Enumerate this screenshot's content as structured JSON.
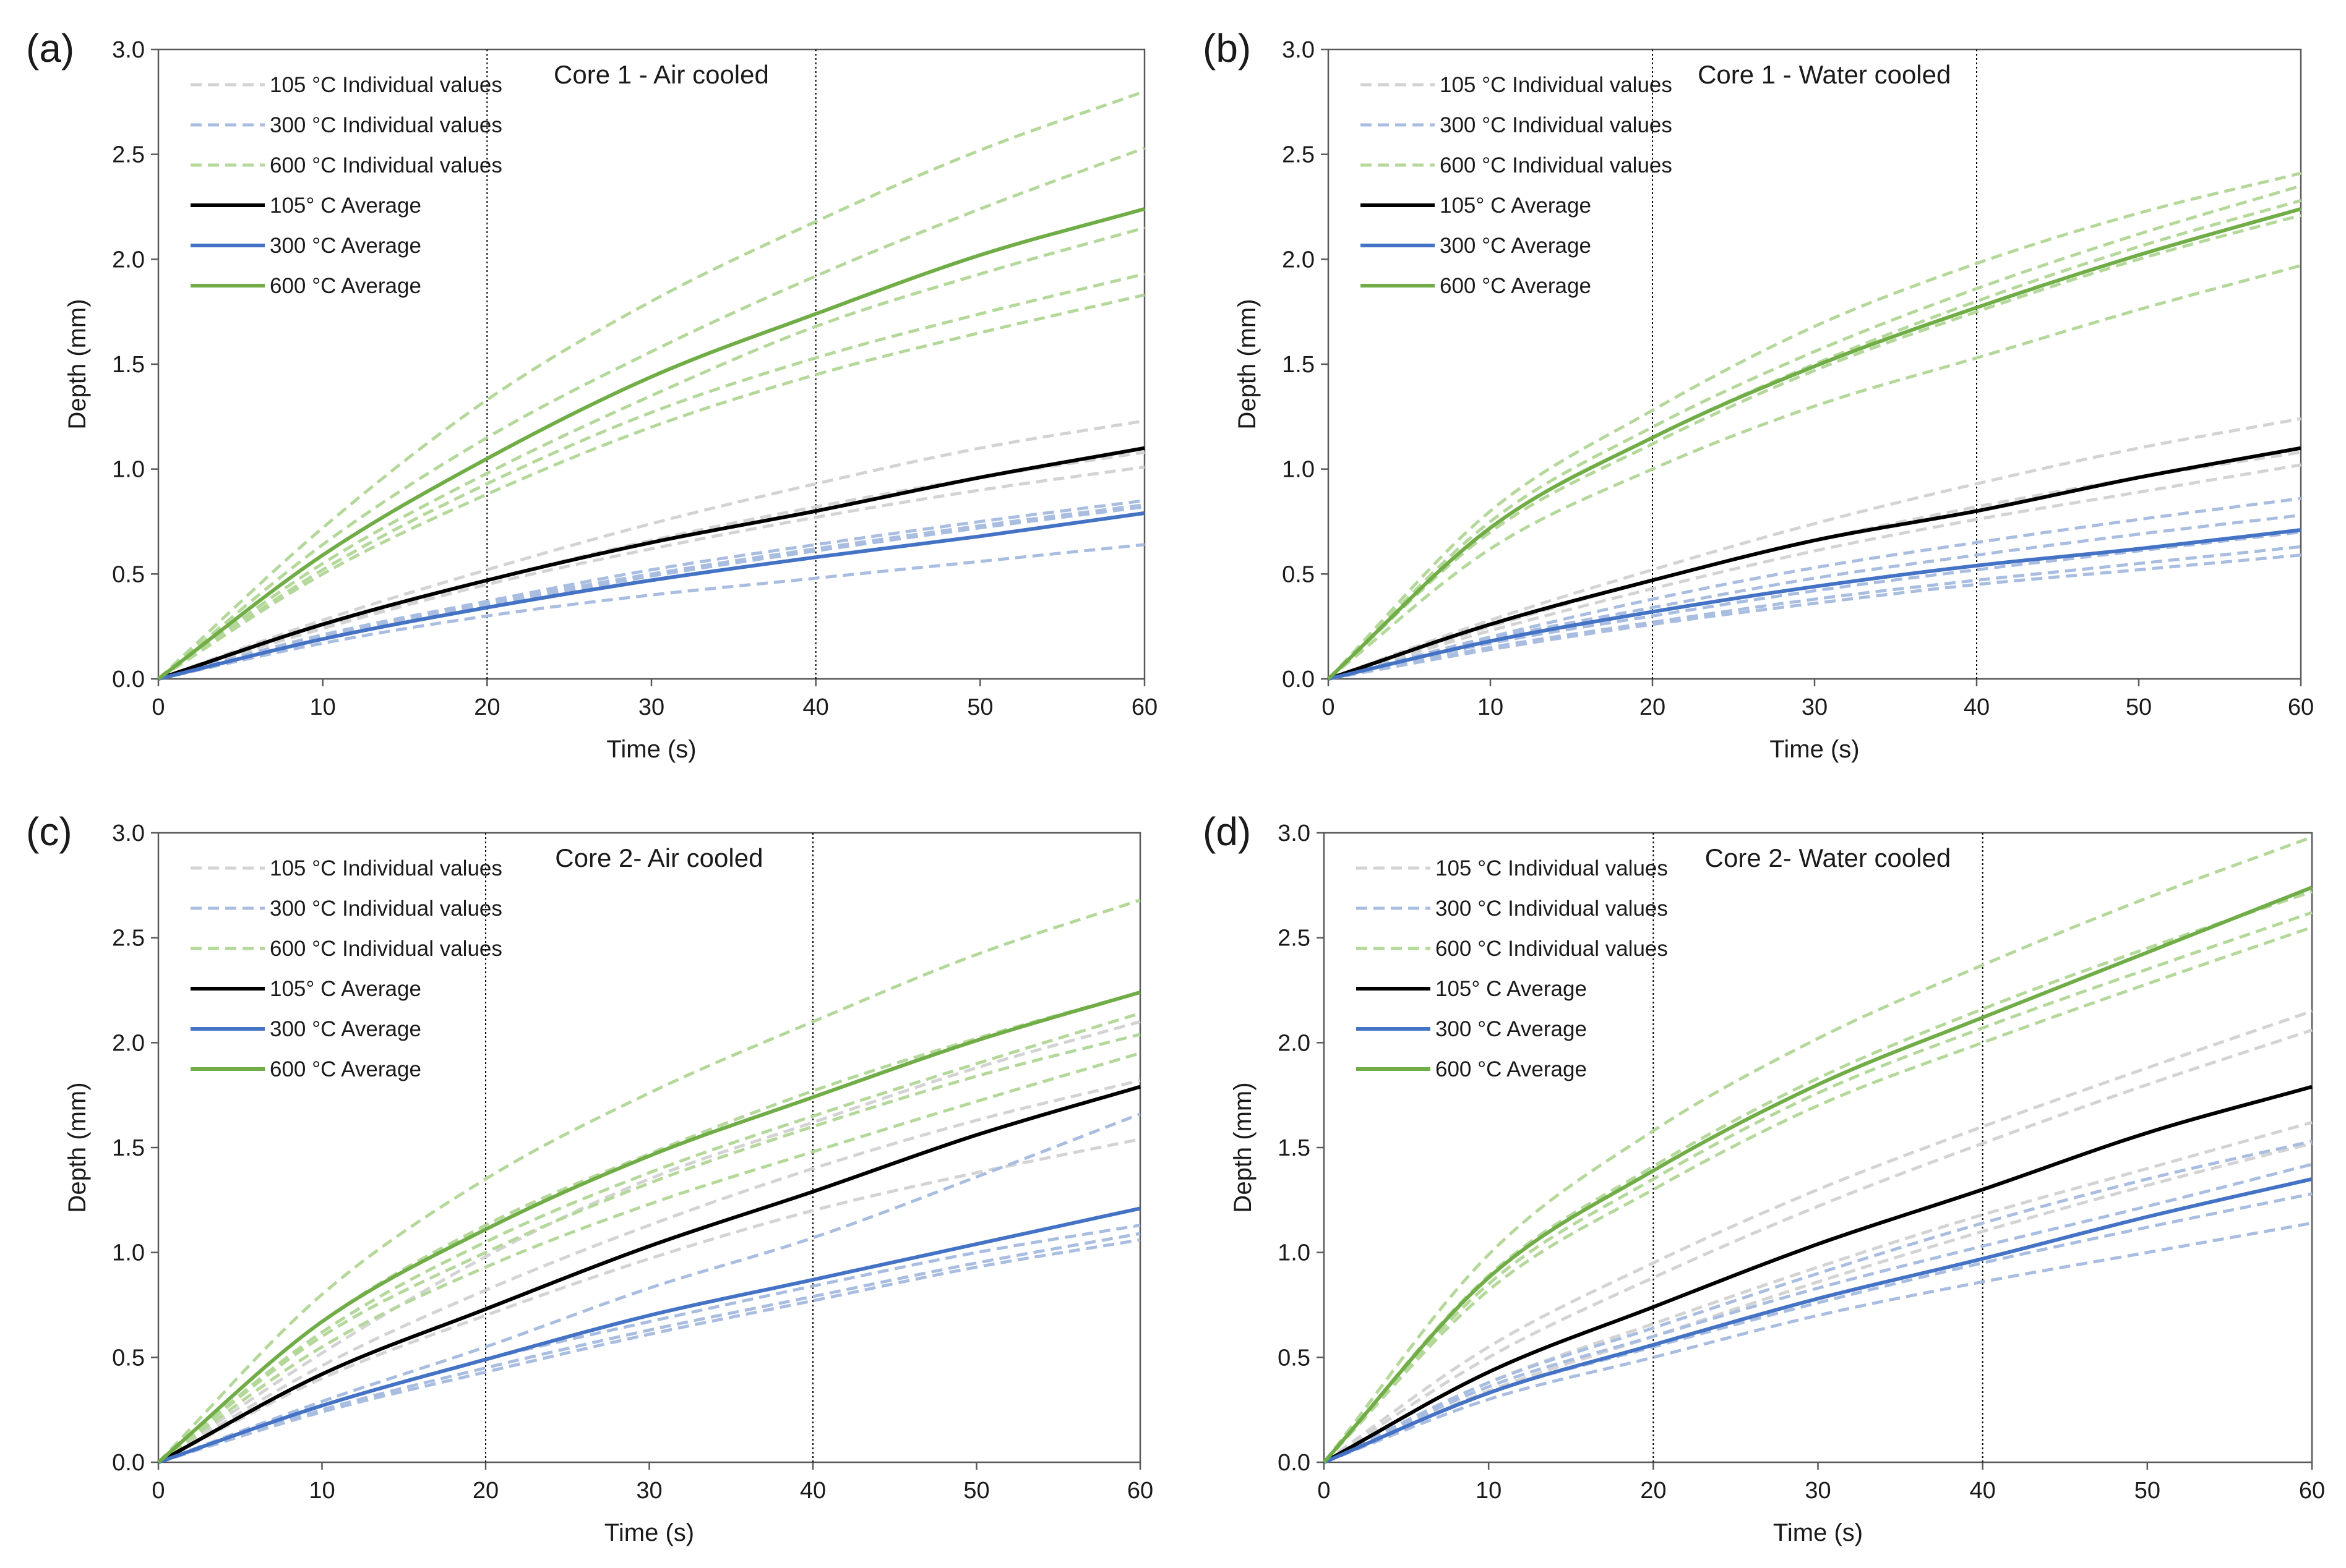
{
  "figure": {
    "panels": [
      {
        "letter": "(a)",
        "title": "Core 1 - Air cooled"
      },
      {
        "letter": "(b)",
        "title": "Core 1 - Water cooled"
      },
      {
        "letter": "(c)",
        "title": "Core 2- Air cooled"
      },
      {
        "letter": "(d)",
        "title": "Core 2- Water cooled"
      }
    ]
  },
  "colors": {
    "c105_individual": "#d3d3d3",
    "c300_individual": "#a9bde0",
    "c600_individual": "#b4d89a",
    "c105_average": "#000000",
    "c300_average": "#4472c4",
    "c600_average": "#70ad47",
    "reference_line": "#000000"
  },
  "chart_data": [
    {
      "type": "line",
      "title": "Core 1 - Air cooled",
      "xlabel": "Time (s)",
      "ylabel": "Depth (mm)",
      "xlim": [
        0,
        60
      ],
      "ylim": [
        0,
        3.0
      ],
      "xticks": [
        0,
        10,
        20,
        30,
        40,
        50,
        60
      ],
      "yticks": [
        "0.0",
        "0.5",
        "1.0",
        "1.5",
        "2.0",
        "2.5",
        "3.0"
      ],
      "vlines": [
        20,
        40
      ],
      "legend": [
        "105 °C Individual values",
        "300 °C Individual values",
        "600 °C Individual values",
        "105° C Average",
        "300 °C Average",
        "600 °C Average"
      ],
      "x": [
        0,
        10,
        20,
        30,
        40,
        50,
        60
      ],
      "individual": {
        "105": [
          [
            0,
            0.28,
            0.52,
            0.74,
            0.93,
            1.1,
            1.23
          ],
          [
            0,
            0.25,
            0.47,
            0.66,
            0.82,
            0.96,
            1.08
          ],
          [
            0,
            0.24,
            0.45,
            0.62,
            0.77,
            0.9,
            1.01
          ]
        ],
        "300": [
          [
            0,
            0.21,
            0.37,
            0.52,
            0.64,
            0.75,
            0.85
          ],
          [
            0,
            0.2,
            0.36,
            0.5,
            0.62,
            0.73,
            0.83
          ],
          [
            0,
            0.2,
            0.35,
            0.49,
            0.61,
            0.72,
            0.82
          ],
          [
            0,
            0.17,
            0.3,
            0.4,
            0.48,
            0.56,
            0.64
          ]
        ],
        "600": [
          [
            0,
            0.72,
            1.33,
            1.8,
            2.18,
            2.52,
            2.8
          ],
          [
            0,
            0.64,
            1.15,
            1.56,
            1.92,
            2.24,
            2.53
          ],
          [
            0,
            0.55,
            0.98,
            1.35,
            1.68,
            1.93,
            2.15
          ],
          [
            0,
            0.52,
            0.93,
            1.27,
            1.53,
            1.74,
            1.93
          ],
          [
            0,
            0.5,
            0.88,
            1.2,
            1.45,
            1.65,
            1.83
          ]
        ]
      },
      "average": {
        "105": [
          0,
          0.26,
          0.47,
          0.65,
          0.8,
          0.96,
          1.1
        ],
        "300": [
          0,
          0.19,
          0.34,
          0.47,
          0.58,
          0.68,
          0.79
        ],
        "600": [
          0,
          0.59,
          1.05,
          1.44,
          1.74,
          2.02,
          2.24
        ]
      }
    },
    {
      "type": "line",
      "title": "Core 1 - Water cooled",
      "xlabel": "Time (s)",
      "ylabel": "Depth (mm)",
      "xlim": [
        0,
        60
      ],
      "ylim": [
        0,
        3.0
      ],
      "xticks": [
        0,
        10,
        20,
        30,
        40,
        50,
        60
      ],
      "yticks": [
        "0.0",
        "0.5",
        "1.0",
        "1.5",
        "2.0",
        "2.5",
        "3.0"
      ],
      "vlines": [
        20,
        40
      ],
      "legend": [
        "105 °C Individual values",
        "300 °C Individual values",
        "600 °C Individual values",
        "105° C Average",
        "300 °C Average",
        "600 °C Average"
      ],
      "x": [
        0,
        10,
        20,
        30,
        40,
        50,
        60
      ],
      "individual": {
        "105": [
          [
            0,
            0.28,
            0.52,
            0.74,
            0.93,
            1.1,
            1.24
          ],
          [
            0,
            0.25,
            0.47,
            0.66,
            0.82,
            0.96,
            1.08
          ],
          [
            0,
            0.23,
            0.43,
            0.61,
            0.76,
            0.89,
            1.02
          ]
        ],
        "300": [
          [
            0,
            0.2,
            0.38,
            0.53,
            0.65,
            0.76,
            0.86
          ],
          [
            0,
            0.19,
            0.34,
            0.48,
            0.59,
            0.69,
            0.78
          ],
          [
            0,
            0.17,
            0.3,
            0.42,
            0.52,
            0.61,
            0.7
          ],
          [
            0,
            0.15,
            0.27,
            0.38,
            0.47,
            0.55,
            0.63
          ],
          [
            0,
            0.14,
            0.26,
            0.36,
            0.45,
            0.52,
            0.59
          ]
        ],
        "600": [
          [
            0,
            0.8,
            1.28,
            1.68,
            1.98,
            2.22,
            2.41
          ],
          [
            0,
            0.75,
            1.2,
            1.56,
            1.86,
            2.12,
            2.35
          ],
          [
            0,
            0.72,
            1.15,
            1.5,
            1.8,
            2.06,
            2.28
          ],
          [
            0,
            0.7,
            1.12,
            1.47,
            1.75,
            2.0,
            2.21
          ],
          [
            0,
            0.62,
            1.0,
            1.3,
            1.53,
            1.76,
            1.97
          ]
        ]
      },
      "average": {
        "105": [
          0,
          0.26,
          0.47,
          0.66,
          0.8,
          0.96,
          1.1
        ],
        "300": [
          0,
          0.18,
          0.32,
          0.44,
          0.54,
          0.62,
          0.71
        ],
        "600": [
          0,
          0.72,
          1.15,
          1.49,
          1.77,
          2.02,
          2.24
        ]
      }
    },
    {
      "type": "line",
      "title": "Core 2- Air cooled",
      "xlabel": "Time (s)",
      "ylabel": "Depth (mm)",
      "xlim": [
        0,
        60
      ],
      "ylim": [
        0,
        3.0
      ],
      "xticks": [
        0,
        10,
        20,
        30,
        40,
        50,
        60
      ],
      "yticks": [
        "0.0",
        "0.5",
        "1.0",
        "1.5",
        "2.0",
        "2.5",
        "3.0"
      ],
      "vlines": [
        20,
        40
      ],
      "legend": [
        "105 °C Individual values",
        "300 °C Individual values",
        "600 °C Individual values",
        "105° C Average",
        "300 °C Average",
        "600 °C Average"
      ],
      "x": [
        0,
        10,
        20,
        30,
        40,
        50,
        60
      ],
      "individual": {
        "105": [
          [
            0,
            0.52,
            0.98,
            1.35,
            1.62,
            1.88,
            2.1
          ],
          [
            0,
            0.46,
            0.82,
            1.13,
            1.4,
            1.63,
            1.82
          ],
          [
            0,
            0.4,
            0.7,
            0.97,
            1.2,
            1.38,
            1.54
          ]
        ],
        "300": [
          [
            0,
            0.29,
            0.55,
            0.83,
            1.07,
            1.36,
            1.66
          ],
          [
            0,
            0.27,
            0.49,
            0.67,
            0.84,
            1.0,
            1.13
          ],
          [
            0,
            0.25,
            0.45,
            0.63,
            0.79,
            0.95,
            1.09
          ],
          [
            0,
            0.24,
            0.43,
            0.61,
            0.77,
            0.93,
            1.06
          ]
        ],
        "600": [
          [
            0,
            0.8,
            1.35,
            1.76,
            2.1,
            2.42,
            2.68
          ],
          [
            0,
            0.67,
            1.13,
            1.47,
            1.77,
            2.02,
            2.24
          ],
          [
            0,
            0.62,
            1.05,
            1.38,
            1.65,
            1.9,
            2.14
          ],
          [
            0,
            0.6,
            1.0,
            1.33,
            1.6,
            1.84,
            2.04
          ],
          [
            0,
            0.55,
            0.93,
            1.23,
            1.48,
            1.72,
            1.95
          ]
        ]
      },
      "average": {
        "105": [
          0,
          0.42,
          0.73,
          1.03,
          1.29,
          1.56,
          1.79
        ],
        "300": [
          0,
          0.27,
          0.49,
          0.7,
          0.87,
          1.04,
          1.21
        ],
        "600": [
          0,
          0.67,
          1.11,
          1.46,
          1.74,
          2.01,
          2.24
        ]
      }
    },
    {
      "type": "line",
      "title": "Core 2- Water cooled",
      "xlabel": "Time (s)",
      "ylabel": "Depth (mm)",
      "xlim": [
        0,
        60
      ],
      "ylim": [
        0,
        3.0
      ],
      "xticks": [
        0,
        10,
        20,
        30,
        40,
        50,
        60
      ],
      "yticks": [
        "0.0",
        "0.5",
        "1.0",
        "1.5",
        "2.0",
        "2.5",
        "3.0"
      ],
      "vlines": [
        20,
        40
      ],
      "legend": [
        "105 °C Individual values",
        "300 °C Individual values",
        "600 °C Individual values",
        "105° C Average",
        "300 °C Average",
        "600 °C Average"
      ],
      "x": [
        0,
        10,
        20,
        30,
        40,
        50,
        60
      ],
      "individual": {
        "105": [
          [
            0,
            0.55,
            0.95,
            1.3,
            1.6,
            1.88,
            2.15
          ],
          [
            0,
            0.5,
            0.88,
            1.22,
            1.52,
            1.8,
            2.06
          ],
          [
            0,
            0.38,
            0.66,
            0.93,
            1.18,
            1.4,
            1.62
          ],
          [
            0,
            0.34,
            0.6,
            0.86,
            1.1,
            1.32,
            1.52
          ]
        ],
        "300": [
          [
            0,
            0.38,
            0.64,
            0.9,
            1.14,
            1.35,
            1.53
          ],
          [
            0,
            0.36,
            0.6,
            0.83,
            1.03,
            1.22,
            1.42
          ],
          [
            0,
            0.33,
            0.55,
            0.76,
            0.95,
            1.12,
            1.28
          ],
          [
            0,
            0.3,
            0.5,
            0.7,
            0.86,
            1.0,
            1.14
          ]
        ],
        "600": [
          [
            0,
            0.99,
            1.58,
            2.02,
            2.37,
            2.69,
            2.98
          ],
          [
            0,
            0.89,
            1.41,
            1.83,
            2.16,
            2.45,
            2.72
          ],
          [
            0,
            0.85,
            1.35,
            1.76,
            2.07,
            2.35,
            2.62
          ],
          [
            0,
            0.82,
            1.3,
            1.7,
            2.0,
            2.28,
            2.55
          ]
        ]
      },
      "average": {
        "105": [
          0,
          0.43,
          0.74,
          1.04,
          1.3,
          1.57,
          1.79
        ],
        "300": [
          0,
          0.33,
          0.56,
          0.78,
          0.97,
          1.17,
          1.35
        ],
        "600": [
          0,
          0.88,
          1.39,
          1.8,
          2.12,
          2.43,
          2.74
        ]
      }
    }
  ]
}
